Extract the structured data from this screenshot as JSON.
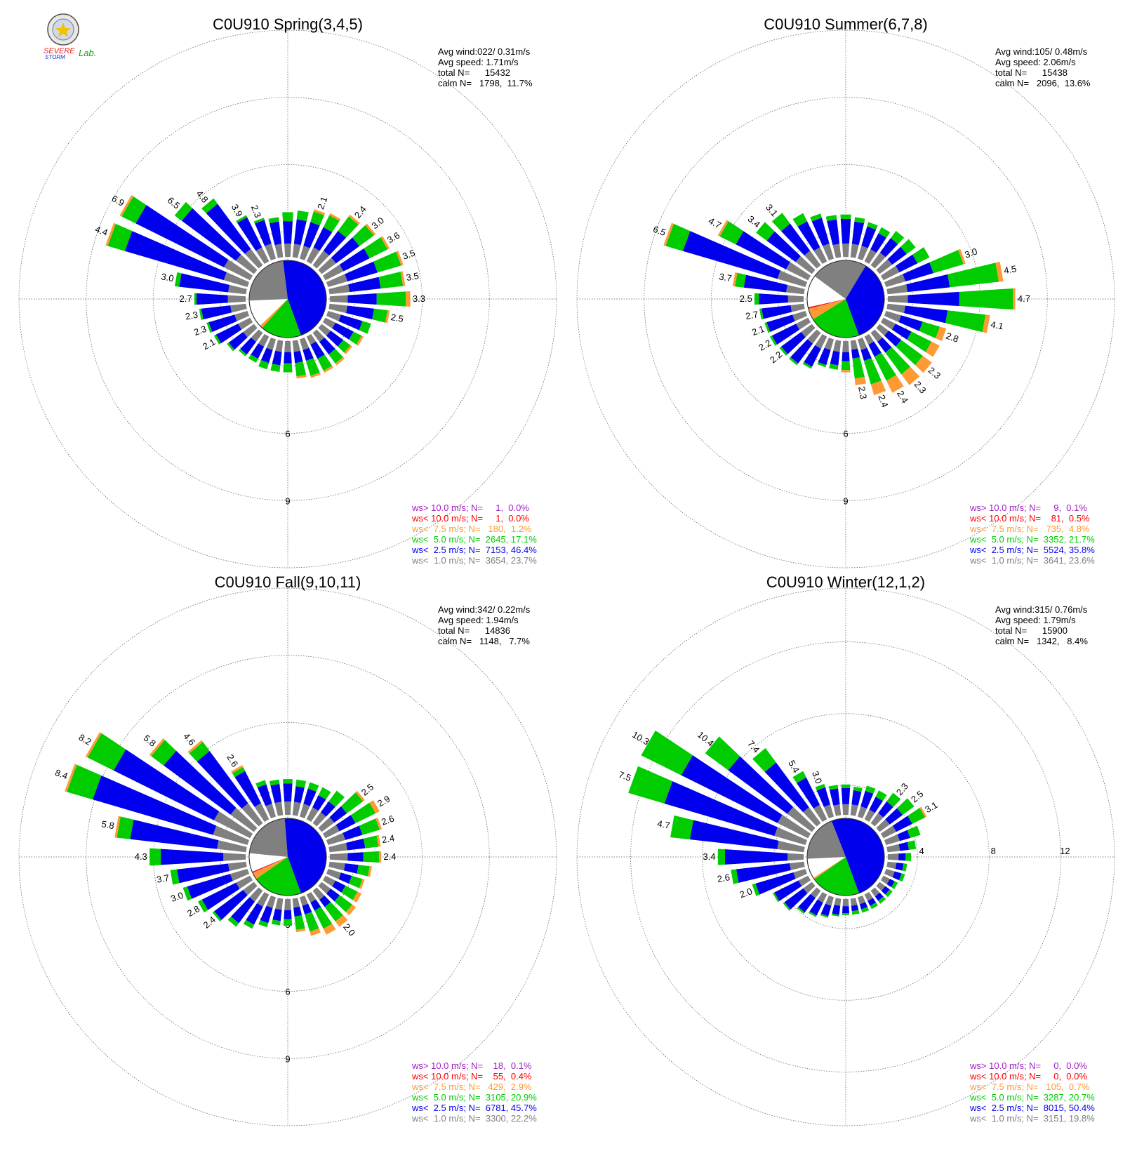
{
  "logo": {
    "text_a": "SEVERE",
    "text_b": "STORM",
    "text_c": "Lab."
  },
  "colors": {
    "gt10": "#a020c0",
    "lt10": "#ff0000",
    "lt7_5": "#ff9933",
    "lt5": "#00cc00",
    "lt2_5": "#0000ee",
    "lt1": "#808080"
  },
  "panels": [
    {
      "title": "C0U910 Spring(3,4,5)",
      "stats": [
        "Avg wind:022/ 0.31m/s",
        "Avg speed: 1.71m/s",
        "total N=      15432",
        "calm N=   1798,  11.7%"
      ],
      "legend": [
        "ws> 10.0 m/s; N=     1,  0.0%",
        "ws< 10.0 m/s; N=     1,  0.0%",
        "ws<  7.5 m/s; N=   180,  1.2%",
        "ws<  5.0 m/s; N=  2645, 17.1%",
        "ws<  2.5 m/s; N=  7153, 46.4%",
        "ws<  1.0 m/s; N=  3654, 23.7%"
      ],
      "ticks": [
        "3",
        "6",
        "9"
      ],
      "pie": [
        0.464,
        0.171,
        0.012,
        0.0,
        0.0,
        0.237
      ]
    },
    {
      "title": "C0U910 Summer(6,7,8)",
      "stats": [
        "Avg wind:105/ 0.48m/s",
        "Avg speed: 2.06m/s",
        "total N=      15438",
        "calm N=   2096,  13.6%"
      ],
      "legend": [
        "ws> 10.0 m/s; N=     9,  0.1%",
        "ws< 10.0 m/s; N=    81,  0.5%",
        "ws<  7.5 m/s; N=   735,  4.8%",
        "ws<  5.0 m/s; N=  3352, 21.7%",
        "ws<  2.5 m/s; N=  5524, 35.8%",
        "ws<  1.0 m/s; N=  3641, 23.6%"
      ],
      "ticks": [
        "3",
        "6",
        "9"
      ],
      "pie": [
        0.358,
        0.217,
        0.048,
        0.005,
        0.001,
        0.236
      ]
    },
    {
      "title": "C0U910 Fall(9,10,11)",
      "stats": [
        "Avg wind:342/ 0.22m/s",
        "Avg speed: 1.94m/s",
        "total N=      14836",
        "calm N=   1148,   7.7%"
      ],
      "legend": [
        "ws> 10.0 m/s; N=    18,  0.1%",
        "ws< 10.0 m/s; N=    55,  0.4%",
        "ws<  7.5 m/s; N=   429,  2.9%",
        "ws<  5.0 m/s; N=  3105, 20.9%",
        "ws<  2.5 m/s; N=  6781, 45.7%",
        "ws<  1.0 m/s; N=  3300, 22.2%"
      ],
      "ticks": [
        "3",
        "6",
        "9"
      ],
      "pie": [
        0.457,
        0.209,
        0.029,
        0.004,
        0.001,
        0.222
      ]
    },
    {
      "title": "C0U910 Winter(12,1,2)",
      "stats": [
        "Avg wind:315/ 0.76m/s",
        "Avg speed: 1.79m/s",
        "total N=      15900",
        "calm N=   1342,   8.4%"
      ],
      "legend": [
        "ws> 10.0 m/s; N=     0,  0.0%",
        "ws< 10.0 m/s; N=     0,  0.0%",
        "ws<  7.5 m/s; N=   105,  0.7%",
        "ws<  5.0 m/s; N=  3287, 20.7%",
        "ws<  2.5 m/s; N=  8015, 50.4%",
        "ws<  1.0 m/s; N=  3151, 19.8%"
      ],
      "ticks": [
        "4",
        "8",
        "12"
      ],
      "pie": [
        0.504,
        0.207,
        0.007,
        0.0,
        0.0,
        0.198
      ]
    }
  ],
  "chart_data": [
    {
      "type": "polar-bar",
      "title": "C0U910 Spring(3,4,5)",
      "radial_max": 12,
      "radial_ticks": [
        3,
        6,
        9
      ],
      "directions_deg": [
        0,
        10,
        20,
        30,
        40,
        50,
        60,
        70,
        80,
        90,
        100,
        110,
        120,
        130,
        140,
        150,
        160,
        170,
        180,
        190,
        200,
        210,
        220,
        230,
        240,
        250,
        260,
        270,
        280,
        290,
        300,
        310,
        320,
        330,
        340,
        350
      ],
      "series_names": [
        "ws< 1.0",
        "ws< 2.5",
        "ws< 5.0",
        "ws< 7.5",
        "ws< 10.0",
        "ws> 10.0"
      ],
      "bars": [
        [
          0.6,
          1.0,
          0.4,
          0.0
        ],
        [
          0.6,
          1.1,
          0.4,
          0.0
        ],
        [
          0.6,
          1.1,
          0.5,
          0.1
        ],
        [
          0.7,
          1.0,
          0.6,
          0.1
        ],
        [
          0.8,
          1.1,
          0.8,
          0.1
        ],
        [
          0.8,
          1.3,
          0.8,
          0.1
        ],
        [
          0.9,
          1.3,
          0.9,
          0.1
        ],
        [
          0.9,
          1.4,
          1.1,
          0.1
        ],
        [
          0.9,
          1.4,
          1.0,
          0.1
        ],
        [
          0.8,
          1.3,
          1.3,
          0.2
        ],
        [
          0.8,
          1.2,
          0.6,
          0.1
        ],
        [
          0.6,
          1.0,
          0.4,
          0.0
        ],
        [
          0.5,
          0.9,
          0.4,
          0.1
        ],
        [
          0.5,
          0.7,
          0.4,
          0.1
        ],
        [
          0.5,
          0.7,
          0.5,
          0.1
        ],
        [
          0.4,
          0.7,
          0.6,
          0.1
        ],
        [
          0.5,
          0.5,
          0.7,
          0.1
        ],
        [
          0.5,
          0.5,
          0.6,
          0.1
        ],
        [
          0.5,
          0.5,
          0.4,
          0.0
        ],
        [
          0.5,
          0.6,
          0.3,
          0.0
        ],
        [
          0.5,
          0.6,
          0.3,
          0.0
        ],
        [
          0.5,
          0.6,
          0.2,
          0.0
        ],
        [
          0.5,
          0.7,
          0.1,
          0.0
        ],
        [
          0.6,
          0.8,
          0.1,
          0.0
        ],
        [
          0.6,
          1.1,
          0.1,
          0.0
        ],
        [
          0.6,
          1.2,
          0.1,
          0.0
        ],
        [
          0.7,
          1.3,
          0.1,
          0.0
        ],
        [
          0.8,
          1.4,
          0.1,
          0.0
        ],
        [
          0.8,
          2.2,
          0.2,
          0.0
        ],
        [
          1.1,
          4.6,
          0.8,
          0.1
        ],
        [
          1.3,
          4.4,
          0.7,
          0.1
        ],
        [
          1.0,
          3.0,
          0.4,
          0.0
        ],
        [
          0.9,
          2.5,
          0.3,
          0.0
        ],
        [
          0.7,
          1.5,
          0.1,
          0.0
        ],
        [
          0.7,
          1.1,
          0.1,
          0.0
        ],
        [
          0.6,
          1.0,
          0.2,
          0.0
        ]
      ],
      "bar_labels": {
        "20": "2.1",
        "40": "2.4",
        "50": "3.0",
        "60": "3.6",
        "70": "3.5",
        "80": "3.5",
        "90": "3.3",
        "100": "2.5",
        "240": "2.1",
        "250": "2.3",
        "260": "2.3",
        "270": "2.7",
        "280": "3.0",
        "290": "4.4",
        "300": "6.9",
        "310": "6.5",
        "320": "4.8",
        "330": "3.9",
        "340": "2.3"
      }
    },
    {
      "type": "polar-bar",
      "title": "C0U910 Summer(6,7,8)",
      "radial_max": 12,
      "radial_ticks": [
        3,
        6,
        9
      ],
      "directions_deg": [
        0,
        10,
        20,
        30,
        40,
        50,
        60,
        70,
        80,
        90,
        100,
        110,
        120,
        130,
        140,
        150,
        160,
        170,
        180,
        190,
        200,
        210,
        220,
        230,
        240,
        250,
        260,
        270,
        280,
        290,
        300,
        310,
        320,
        330,
        340,
        350
      ],
      "series_names": [
        "ws< 1.0",
        "ws< 2.5",
        "ws< 5.0",
        "ws< 7.5",
        "ws< 10.0",
        "ws> 10.0"
      ],
      "bars": [
        [
          0.6,
          1.1,
          0.2,
          0.0
        ],
        [
          0.6,
          1.0,
          0.2,
          0.0
        ],
        [
          0.6,
          0.9,
          0.2,
          0.0
        ],
        [
          0.6,
          0.8,
          0.3,
          0.0
        ],
        [
          0.7,
          0.8,
          0.4,
          0.0
        ],
        [
          0.7,
          0.8,
          0.5,
          0.0
        ],
        [
          0.8,
          0.9,
          0.6,
          0.0
        ],
        [
          0.9,
          1.3,
          1.4,
          0.1
        ],
        [
          0.9,
          1.9,
          2.2,
          0.2
        ],
        [
          0.9,
          2.3,
          2.4,
          0.1
        ],
        [
          0.8,
          1.9,
          1.7,
          0.2
        ],
        [
          0.7,
          1.0,
          0.8,
          0.3
        ],
        [
          0.6,
          0.8,
          1.0,
          0.4
        ],
        [
          0.5,
          0.7,
          1.2,
          0.5
        ],
        [
          0.5,
          0.6,
          1.2,
          0.6
        ],
        [
          0.4,
          0.6,
          1.2,
          0.6
        ],
        [
          0.5,
          0.5,
          1.1,
          0.5
        ],
        [
          0.4,
          0.4,
          0.9,
          0.3
        ],
        [
          0.5,
          0.4,
          0.4,
          0.1
        ],
        [
          0.5,
          0.6,
          0.2,
          0.0
        ],
        [
          0.5,
          0.7,
          0.1,
          0.0
        ],
        [
          0.6,
          0.9,
          0.1,
          0.0
        ],
        [
          0.6,
          1.1,
          0.1,
          0.0
        ],
        [
          0.6,
          1.1,
          0.1,
          0.0
        ],
        [
          0.6,
          1.2,
          0.1,
          0.0
        ],
        [
          0.6,
          1.2,
          0.1,
          0.0
        ],
        [
          0.6,
          1.3,
          0.1,
          0.0
        ],
        [
          0.7,
          1.3,
          0.2,
          0.0
        ],
        [
          0.8,
          1.9,
          0.4,
          0.1
        ],
        [
          1.3,
          4.4,
          0.8,
          0.1
        ],
        [
          1.1,
          2.5,
          0.8,
          0.1
        ],
        [
          0.9,
          1.6,
          0.6,
          0.0
        ],
        [
          0.8,
          1.5,
          0.6,
          0.0
        ],
        [
          0.7,
          1.3,
          0.4,
          0.0
        ],
        [
          0.7,
          1.2,
          0.2,
          0.0
        ],
        [
          0.6,
          1.1,
          0.2,
          0.0
        ]
      ],
      "bar_labels": {
        "70": "3.0",
        "80": "4.5",
        "90": "4.7",
        "100": "4.1",
        "110": "2.8",
        "130": "2.3",
        "140": "2.3",
        "150": "2.4",
        "160": "2.4",
        "170": "2.3",
        "230": "2.2",
        "240": "2.2",
        "250": "2.1",
        "260": "2.7",
        "270": "2.5",
        "280": "3.7",
        "290": "6.5",
        "300": "4.7",
        "310": "3.4",
        "320": "3.1"
      }
    },
    {
      "type": "polar-bar",
      "title": "C0U910 Fall(9,10,11)",
      "radial_max": 12,
      "radial_ticks": [
        3,
        6,
        9
      ],
      "directions_deg": [
        0,
        10,
        20,
        30,
        40,
        50,
        60,
        70,
        80,
        90,
        100,
        110,
        120,
        130,
        140,
        150,
        160,
        170,
        180,
        190,
        200,
        210,
        220,
        230,
        240,
        250,
        260,
        270,
        280,
        290,
        300,
        310,
        320,
        330,
        340,
        350
      ],
      "series_names": [
        "ws< 1.0",
        "ws< 2.5",
        "ws< 5.0",
        "ws< 7.5",
        "ws< 10.0",
        "ws> 10.0"
      ],
      "bars": [
        [
          0.6,
          0.8,
          0.2,
          0.0
        ],
        [
          0.6,
          0.7,
          0.3,
          0.0
        ],
        [
          0.6,
          0.7,
          0.3,
          0.0
        ],
        [
          0.6,
          0.6,
          0.4,
          0.0
        ],
        [
          0.6,
          0.6,
          0.6,
          0.0
        ],
        [
          0.7,
          0.7,
          0.9,
          0.1
        ],
        [
          0.7,
          0.8,
          1.0,
          0.2
        ],
        [
          0.8,
          0.8,
          0.8,
          0.1
        ],
        [
          0.8,
          0.8,
          0.6,
          0.1
        ],
        [
          0.8,
          0.7,
          0.7,
          0.1
        ],
        [
          0.7,
          0.6,
          0.5,
          0.1
        ],
        [
          0.6,
          0.5,
          0.5,
          0.1
        ],
        [
          0.5,
          0.5,
          0.6,
          0.2
        ],
        [
          0.5,
          0.5,
          0.7,
          0.2
        ],
        [
          0.5,
          0.4,
          0.8,
          0.3
        ],
        [
          0.4,
          0.4,
          0.9,
          0.3
        ],
        [
          0.4,
          0.4,
          0.8,
          0.2
        ],
        [
          0.4,
          0.4,
          0.6,
          0.1
        ],
        [
          0.5,
          0.4,
          0.3,
          0.0
        ],
        [
          0.5,
          0.5,
          0.2,
          0.0
        ],
        [
          0.5,
          0.7,
          0.2,
          0.0
        ],
        [
          0.6,
          0.9,
          0.2,
          0.0
        ],
        [
          0.6,
          1.2,
          0.2,
          0.0
        ],
        [
          0.6,
          1.6,
          0.1,
          0.0
        ],
        [
          0.7,
          1.7,
          0.2,
          0.0
        ],
        [
          0.8,
          2.0,
          0.2,
          0.0
        ],
        [
          0.8,
          2.3,
          0.3,
          0.0
        ],
        [
          1.0,
          2.8,
          0.5,
          0.0
        ],
        [
          1.3,
          3.9,
          0.6,
          0.1
        ],
        [
          1.6,
          5.6,
          1.2,
          0.1
        ],
        [
          1.8,
          5.0,
          1.3,
          0.1
        ],
        [
          1.3,
          3.7,
          0.7,
          0.1
        ],
        [
          1.1,
          2.9,
          0.5,
          0.1
        ],
        [
          0.8,
          1.6,
          0.2,
          0.1
        ],
        [
          0.6,
          0.9,
          0.2,
          0.0
        ],
        [
          0.6,
          0.8,
          0.2,
          0.0
        ]
      ],
      "bar_labels": {
        "50": "2.5",
        "60": "2.9",
        "70": "2.6",
        "80": "2.4",
        "90": "2.4",
        "140": "2.0",
        "230": "2.4",
        "240": "2.8",
        "250": "3.0",
        "260": "3.7",
        "270": "4.3",
        "280": "5.8",
        "290": "8.4",
        "300": "8.2",
        "310": "5.8",
        "320": "4.6",
        "330": "2.6"
      }
    },
    {
      "type": "polar-bar",
      "title": "C0U910 Winter(12,1,2)",
      "radial_max": 15,
      "radial_ticks": [
        4,
        8,
        12
      ],
      "directions_deg": [
        0,
        10,
        20,
        30,
        40,
        50,
        60,
        70,
        80,
        90,
        100,
        110,
        120,
        130,
        140,
        150,
        160,
        170,
        180,
        190,
        200,
        210,
        220,
        230,
        240,
        250,
        260,
        270,
        280,
        290,
        300,
        310,
        320,
        330,
        340,
        350
      ],
      "series_names": [
        "ws< 1.0",
        "ws< 2.5",
        "ws< 5.0",
        "ws< 7.5",
        "ws< 10.0",
        "ws> 10.0"
      ],
      "bars": [
        [
          0.6,
          0.9,
          0.2,
          0.0
        ],
        [
          0.6,
          0.8,
          0.2,
          0.0
        ],
        [
          0.6,
          0.9,
          0.3,
          0.0
        ],
        [
          0.6,
          0.8,
          0.4,
          0.0
        ],
        [
          0.7,
          0.8,
          0.6,
          0.0
        ],
        [
          0.7,
          0.9,
          0.8,
          0.0
        ],
        [
          0.8,
          1.0,
          0.8,
          0.1
        ],
        [
          0.8,
          0.6,
          0.6,
          0.0
        ],
        [
          0.7,
          0.5,
          0.4,
          0.0
        ],
        [
          0.6,
          0.4,
          0.3,
          0.0
        ],
        [
          0.5,
          0.4,
          0.2,
          0.0
        ],
        [
          0.5,
          0.4,
          0.2,
          0.0
        ],
        [
          0.4,
          0.3,
          0.2,
          0.0
        ],
        [
          0.4,
          0.3,
          0.2,
          0.0
        ],
        [
          0.4,
          0.3,
          0.2,
          0.0
        ],
        [
          0.4,
          0.3,
          0.2,
          0.0
        ],
        [
          0.4,
          0.3,
          0.2,
          0.0
        ],
        [
          0.4,
          0.3,
          0.2,
          0.0
        ],
        [
          0.4,
          0.4,
          0.1,
          0.0
        ],
        [
          0.4,
          0.5,
          0.1,
          0.0
        ],
        [
          0.5,
          0.6,
          0.1,
          0.0
        ],
        [
          0.5,
          0.8,
          0.1,
          0.0
        ],
        [
          0.5,
          1.0,
          0.1,
          0.0
        ],
        [
          0.6,
          1.3,
          0.1,
          0.0
        ],
        [
          0.6,
          1.5,
          0.1,
          0.0
        ],
        [
          0.7,
          2.2,
          0.2,
          0.0
        ],
        [
          0.8,
          3.0,
          0.3,
          0.0
        ],
        [
          0.9,
          3.5,
          0.4,
          0.0
        ],
        [
          1.5,
          4.9,
          1.1,
          0.0
        ],
        [
          1.8,
          6.4,
          2.1,
          0.0
        ],
        [
          1.9,
          6.0,
          2.5,
          0.0
        ],
        [
          1.7,
          4.1,
          1.6,
          0.0
        ],
        [
          1.1,
          3.1,
          1.0,
          0.0
        ],
        [
          0.9,
          1.7,
          0.4,
          0.0
        ],
        [
          0.7,
          1.0,
          0.2,
          0.0
        ],
        [
          0.6,
          0.9,
          0.2,
          0.0
        ]
      ],
      "bar_labels": {
        "40": "2.3",
        "50": "2.5",
        "60": "3.1",
        "250": "2.0",
        "260": "2.6",
        "270": "3.4",
        "280": "4.7",
        "290": "7.5",
        "300": "10.3",
        "310": "10.4",
        "320": "7.4",
        "330": "5.4",
        "340": "3.0"
      }
    }
  ]
}
